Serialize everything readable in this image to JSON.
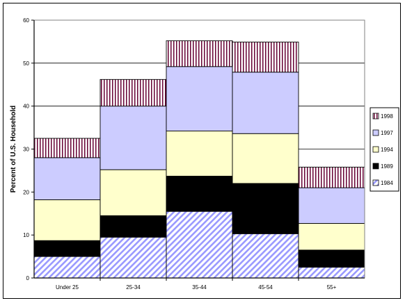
{
  "chart_data": {
    "type": "bar",
    "stacked": true,
    "title": "",
    "xlabel": "",
    "ylabel": "Percent of U.S. Household",
    "ylim": [
      0,
      60
    ],
    "yticks": [
      "0",
      "10",
      "20",
      "30",
      "40",
      "50",
      "60"
    ],
    "grid": true,
    "legend_position": "right",
    "categories": [
      "Under 25",
      "25-34",
      "35-44",
      "45-54",
      "55+"
    ],
    "series": [
      {
        "name": "1984",
        "values": [
          5,
          9.5,
          15.5,
          10.3,
          2.5
        ],
        "color": "#9999ff",
        "pattern": "diagonal"
      },
      {
        "name": "1989",
        "values": [
          3.7,
          5,
          8.2,
          11.7,
          4
        ],
        "color": "#000000",
        "pattern": "solid"
      },
      {
        "name": "1994",
        "values": [
          9.5,
          10.7,
          10.5,
          11.6,
          6.2
        ],
        "color": "#ffffcc",
        "pattern": "solid"
      },
      {
        "name": "1997",
        "values": [
          9.8,
          14.8,
          15,
          14.3,
          8.3
        ],
        "color": "#ccccff",
        "pattern": "solid"
      },
      {
        "name": "1998",
        "values": [
          4.5,
          6.2,
          6,
          7,
          4.8
        ],
        "color": "#660033",
        "pattern": "vertical"
      }
    ]
  }
}
